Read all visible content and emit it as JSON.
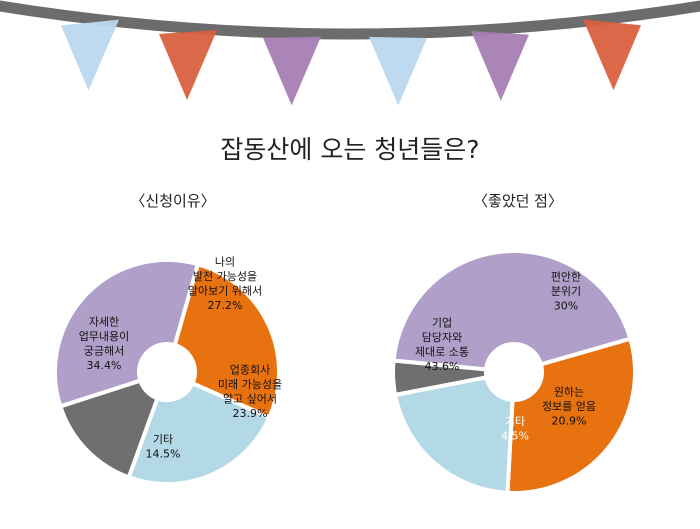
{
  "page": {
    "title": "잡동산에 오는 청년들은?",
    "bunting_colors": [
      "#b9d8ef",
      "#d9603f",
      "#a67eb3",
      "#b9d8ef",
      "#a67eb3",
      "#d9603f"
    ]
  },
  "chart_data": [
    {
      "type": "pie",
      "title": "〈신청이유〉",
      "donut": true,
      "slices": [
        {
          "label": [
            "나의",
            "발전 가능성을",
            "알아보기 위해서"
          ],
          "value": 27.2,
          "value_label": "27.2%",
          "color": "#e8720f",
          "text_color": "#111111"
        },
        {
          "label": [
            "업종회사",
            "미래 가능성을",
            "알고 싶어서"
          ],
          "value": 23.9,
          "value_label": "23.9%",
          "color": "#b4d9e6",
          "text_color": "#111111"
        },
        {
          "label": [
            "기타"
          ],
          "value": 14.5,
          "value_label": "14.5%",
          "color": "#6f6f6f",
          "text_color": "#111111"
        },
        {
          "label": [
            "자세한",
            "업무내용이",
            "궁금해서"
          ],
          "value": 34.4,
          "value_label": "34.4%",
          "color": "#b09fc9",
          "text_color": "#111111"
        }
      ]
    },
    {
      "type": "pie",
      "title": "〈좋았던 점〉",
      "donut": true,
      "slices": [
        {
          "label": [
            "편안한",
            "분위기"
          ],
          "value": 30,
          "value_label": "30%",
          "color": "#e8720f",
          "text_color": "#111111"
        },
        {
          "label": [
            "원하는",
            "정보를 얻음"
          ],
          "value": 20.9,
          "value_label": "20.9%",
          "color": "#b4d9e6",
          "text_color": "#111111"
        },
        {
          "label": [
            "기타"
          ],
          "value": 4.5,
          "value_label": "4.5%",
          "color": "#6f6f6f",
          "text_color": "#ffffff"
        },
        {
          "label": [
            "기업",
            "담당자와",
            "제대로 소통"
          ],
          "value": 43.6,
          "value_label": "43.6%",
          "color": "#b09fc9",
          "text_color": "#111111"
        }
      ]
    }
  ]
}
